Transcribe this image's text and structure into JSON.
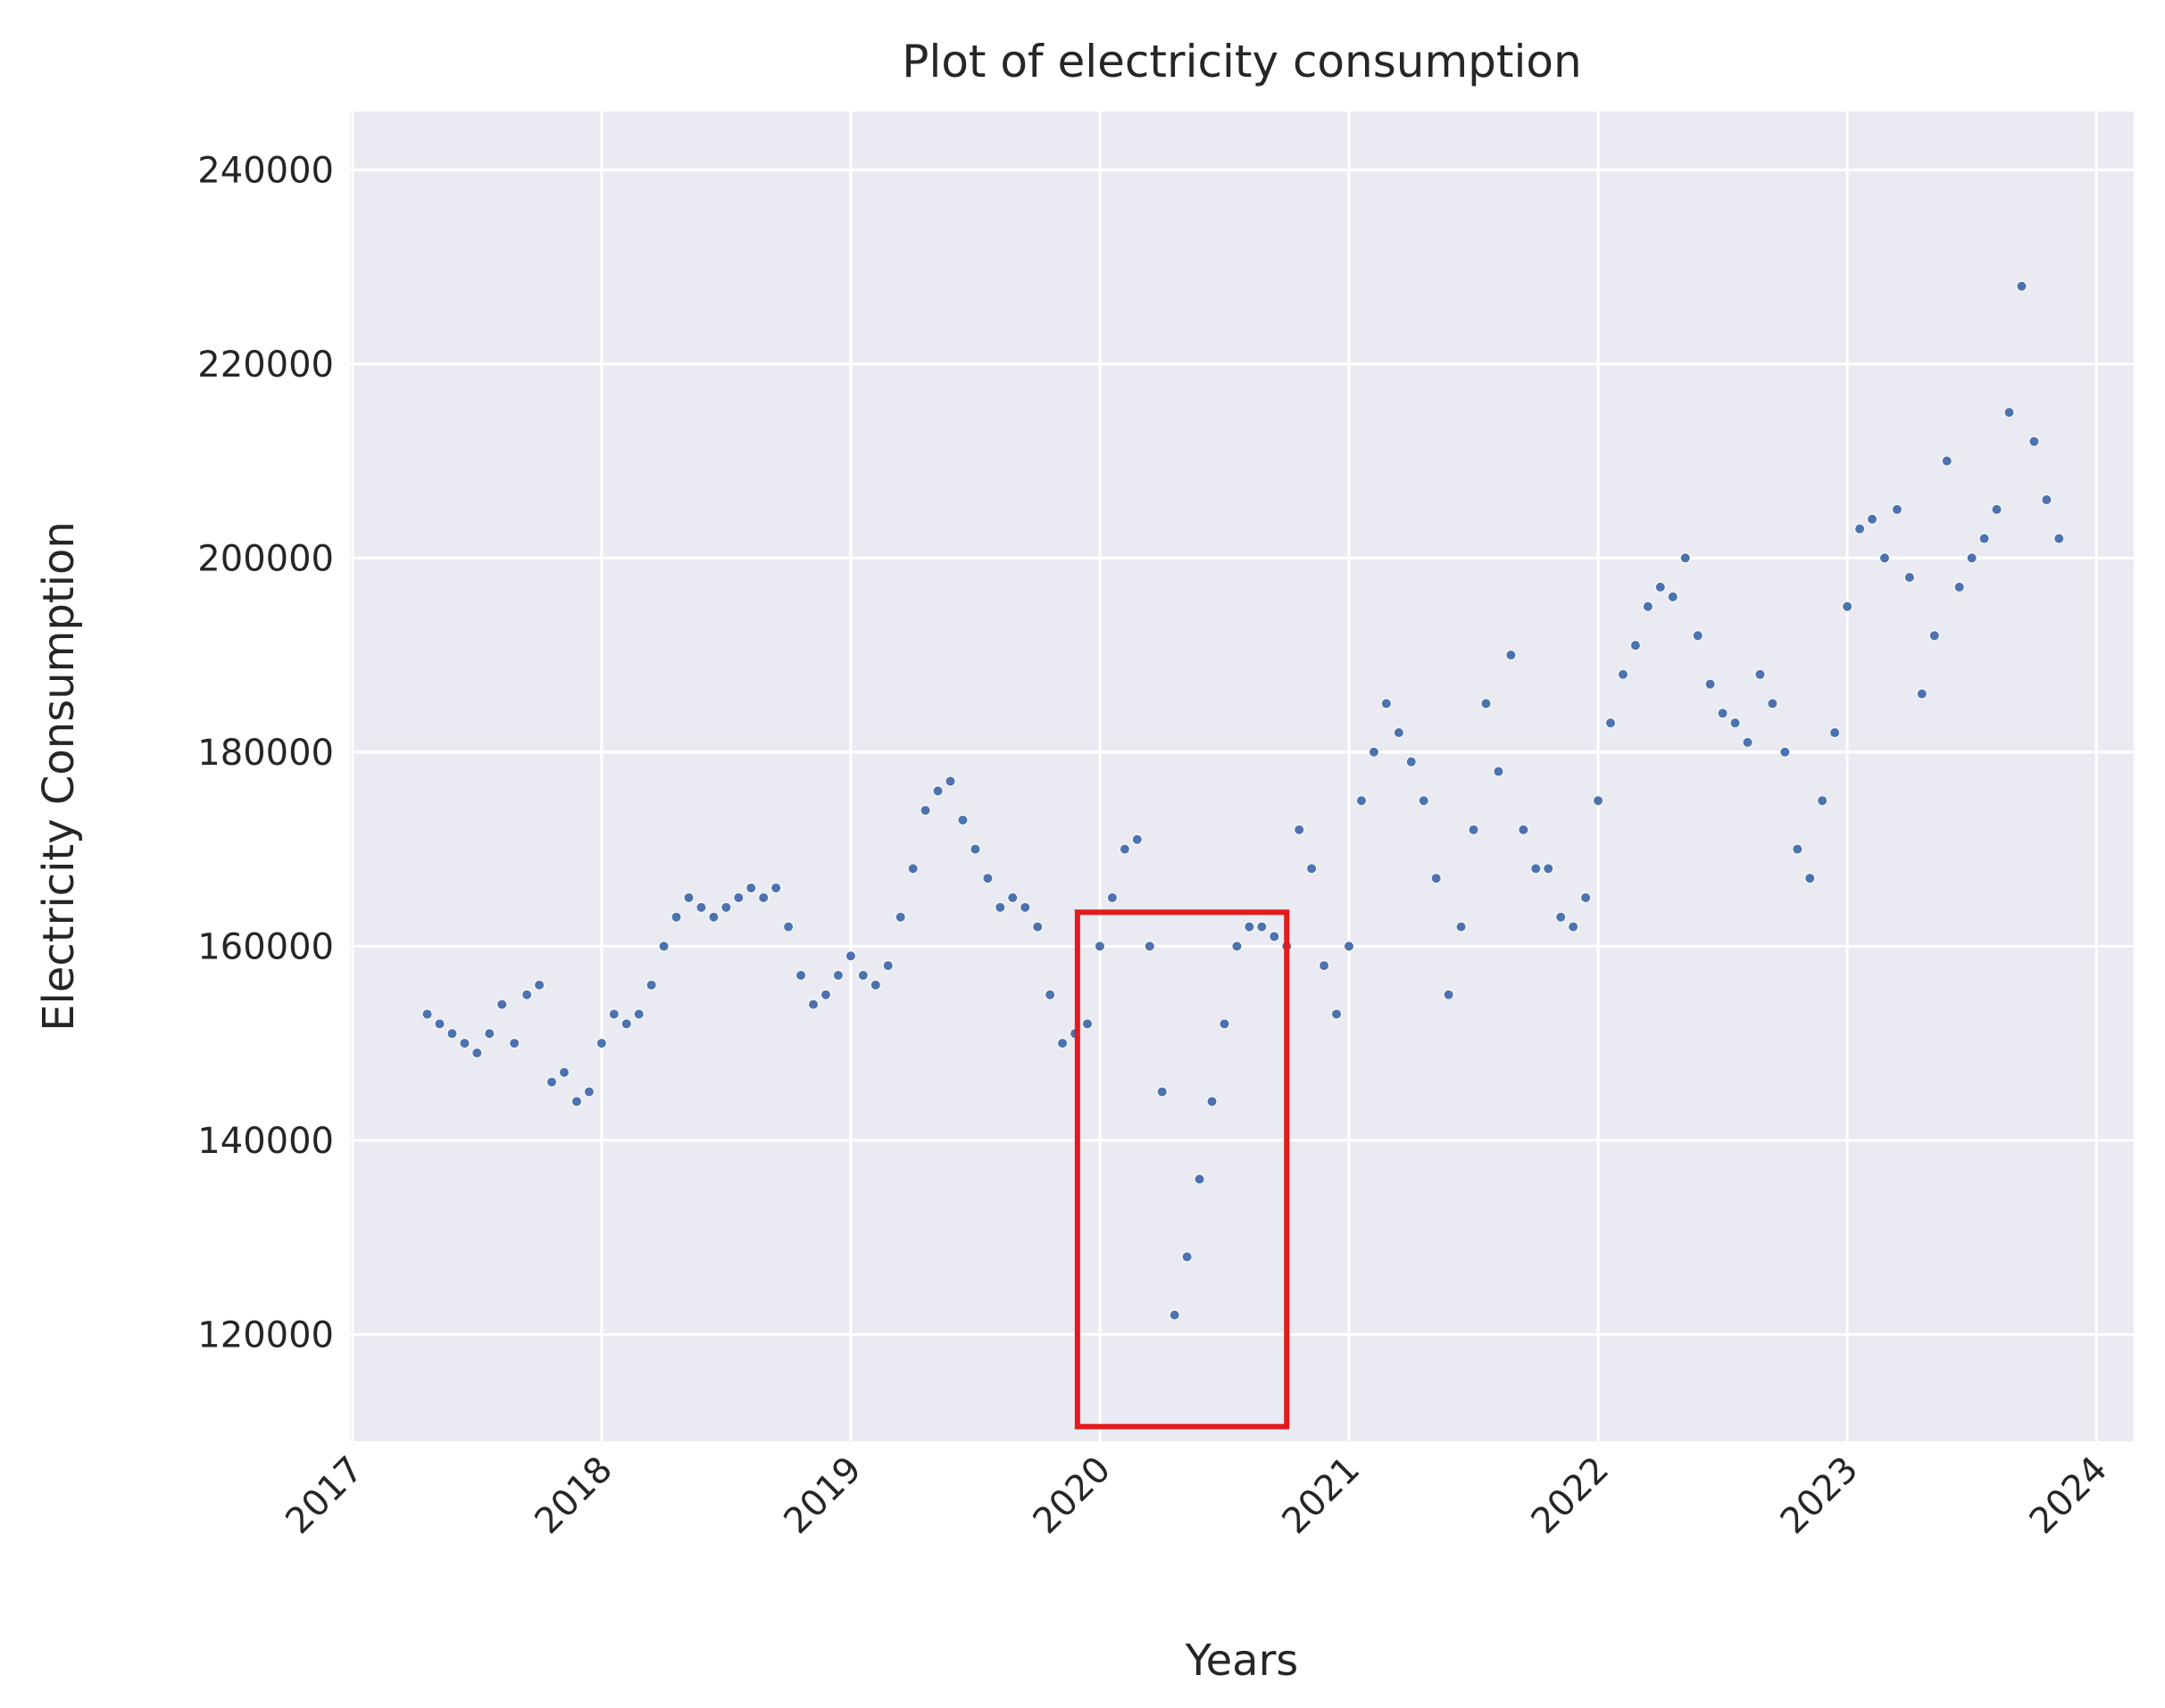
{
  "chart_data": {
    "type": "scatter",
    "title": "Plot of electricity consumption",
    "xlabel": "Years",
    "ylabel": "Electricity Consumption",
    "x_ticks": [
      "2017",
      "2018",
      "2019",
      "2020",
      "2021",
      "2022",
      "2023",
      "2024"
    ],
    "y_ticks": [
      "120000",
      "140000",
      "160000",
      "180000",
      "200000",
      "220000",
      "240000"
    ],
    "xlim": [
      2016.99,
      2024.15
    ],
    "ylim": [
      109000,
      246000
    ],
    "grid": true,
    "series": [
      {
        "color": "#4c72b0",
        "x": [
          2017.3,
          2017.35,
          2017.4,
          2017.45,
          2017.5,
          2017.55,
          2017.6,
          2017.65,
          2017.7,
          2017.75,
          2017.8,
          2017.85,
          2017.9,
          2017.95,
          2018.0,
          2018.05,
          2018.1,
          2018.15,
          2018.2,
          2018.25,
          2018.3,
          2018.35,
          2018.4,
          2018.45,
          2018.5,
          2018.55,
          2018.6,
          2018.65,
          2018.7,
          2018.75,
          2018.8,
          2018.85,
          2018.9,
          2018.95,
          2019.0,
          2019.05,
          2019.1,
          2019.15,
          2019.2,
          2019.25,
          2019.3,
          2019.35,
          2019.4,
          2019.45,
          2019.5,
          2019.55,
          2019.6,
          2019.65,
          2019.7,
          2019.75,
          2019.8,
          2019.85,
          2019.9,
          2019.95,
          2020.0,
          2020.05,
          2020.1,
          2020.15,
          2020.2,
          2020.25,
          2020.3,
          2020.35,
          2020.4,
          2020.45,
          2020.5,
          2020.55,
          2020.6,
          2020.65,
          2020.7,
          2020.75,
          2020.8,
          2020.85,
          2020.9,
          2020.95,
          2021.0,
          2021.05,
          2021.1,
          2021.15,
          2021.2,
          2021.25,
          2021.3,
          2021.35,
          2021.4,
          2021.45,
          2021.5,
          2021.55,
          2021.6,
          2021.65,
          2021.7,
          2021.75,
          2021.8,
          2021.85,
          2021.9,
          2021.95,
          2022.0,
          2022.05,
          2022.1,
          2022.15,
          2022.2,
          2022.25,
          2022.3,
          2022.35,
          2022.4,
          2022.45,
          2022.5,
          2022.55,
          2022.6,
          2022.65,
          2022.7,
          2022.75,
          2022.8,
          2022.85,
          2022.9,
          2022.95,
          2023.0,
          2023.05,
          2023.1,
          2023.15,
          2023.2,
          2023.25,
          2023.3,
          2023.35,
          2023.4,
          2023.45,
          2023.5,
          2023.55,
          2023.6,
          2023.65,
          2023.7,
          2023.75,
          2023.8,
          2023.85
        ],
        "y": [
          153000,
          152000,
          151000,
          150000,
          149000,
          151000,
          154000,
          150000,
          155000,
          156000,
          146000,
          147000,
          144000,
          145000,
          150000,
          153000,
          152000,
          153000,
          156000,
          160000,
          163000,
          165000,
          164000,
          163000,
          164000,
          165000,
          166000,
          165000,
          166000,
          162000,
          157000,
          154000,
          155000,
          157000,
          159000,
          157000,
          156000,
          158000,
          163000,
          168000,
          174000,
          176000,
          177000,
          173000,
          170000,
          167000,
          164000,
          165000,
          164000,
          162000,
          155000,
          150000,
          151000,
          152000,
          160000,
          165000,
          170000,
          171000,
          160000,
          145000,
          122000,
          128000,
          136000,
          144000,
          152000,
          160000,
          162000,
          162000,
          161000,
          160000,
          172000,
          168000,
          158000,
          153000,
          160000,
          175000,
          180000,
          185000,
          182000,
          179000,
          175000,
          167000,
          155000,
          162000,
          172000,
          185000,
          178000,
          190000,
          172000,
          168000,
          168000,
          163000,
          162000,
          165000,
          175000,
          183000,
          188000,
          191000,
          195000,
          197000,
          196000,
          200000,
          192000,
          187000,
          184000,
          183000,
          181000,
          188000,
          185000,
          180000,
          170000,
          167000,
          175000,
          182000,
          195000,
          203000,
          204000,
          200000,
          205000,
          198000,
          186000,
          192000,
          210000,
          197000,
          200000,
          202000,
          205000,
          215000,
          228000,
          212000,
          206000,
          202000
        ]
      }
    ],
    "highlight_box": {
      "x": [
        2019.91,
        2020.75
      ],
      "y": [
        110500,
        163500
      ],
      "color": "#e41a1c"
    }
  }
}
